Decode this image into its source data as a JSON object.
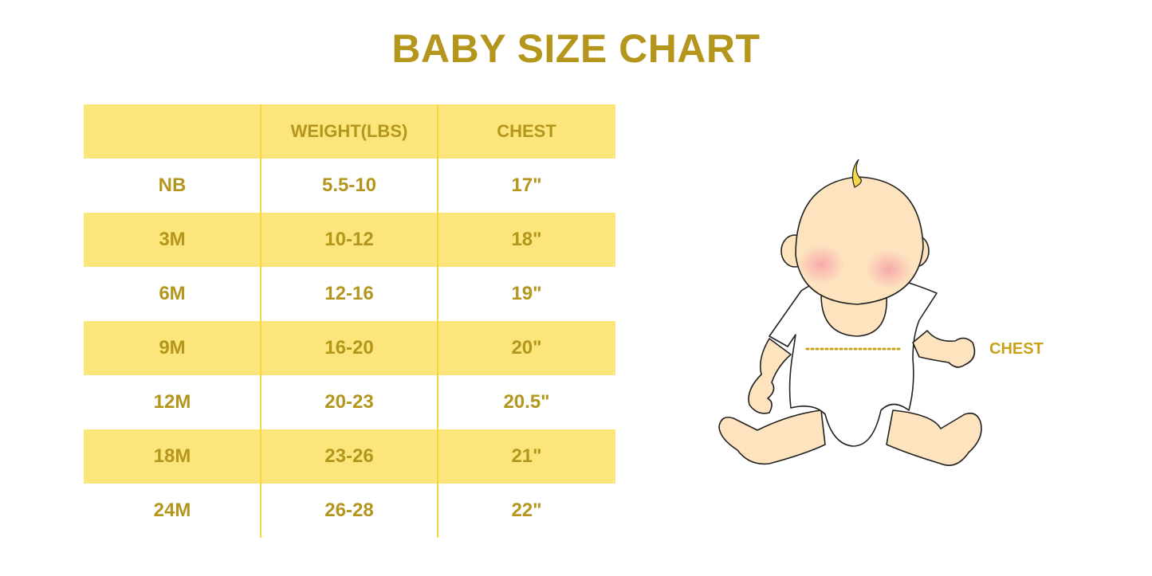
{
  "title": "BABY SIZE CHART",
  "table": {
    "headers": [
      "",
      "WEIGHT(LBS)",
      "CHEST"
    ],
    "rows": [
      [
        "NB",
        "5.5-10",
        "17\""
      ],
      [
        "3M",
        "10-12",
        "18\""
      ],
      [
        "6M",
        "12-16",
        "19\""
      ],
      [
        "9M",
        "16-20",
        "20\""
      ],
      [
        "12M",
        "20-23",
        "20.5\""
      ],
      [
        "18M",
        "23-26",
        "21\""
      ],
      [
        "24M",
        "26-28",
        "22\""
      ]
    ]
  },
  "illustration": {
    "chest_label": "CHEST"
  },
  "colors": {
    "text": "#b5961c",
    "stripe": "#fce57a",
    "divider": "#f7d83c",
    "skin": "#fde4bf"
  }
}
